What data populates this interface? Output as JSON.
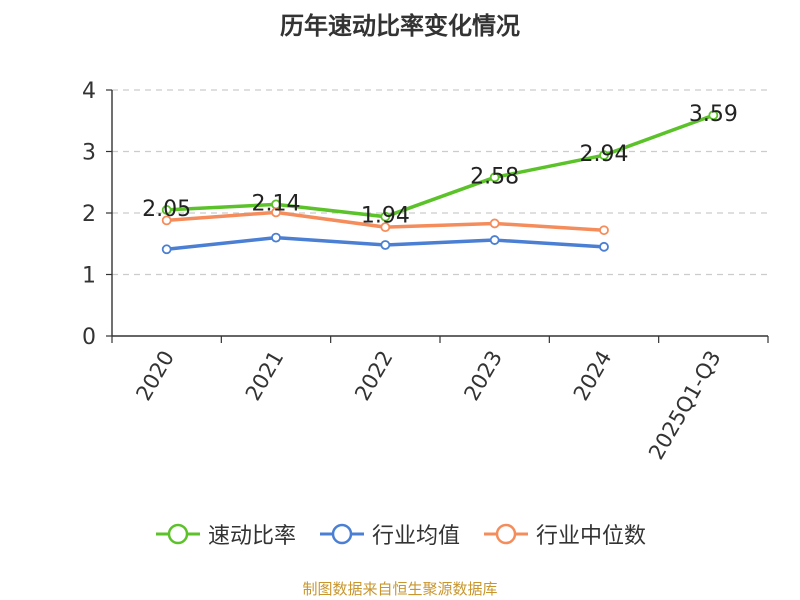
{
  "chart_data": {
    "type": "line",
    "title": "历年速动比率变化情况",
    "categories": [
      "2020",
      "2021",
      "2022",
      "2023",
      "2024",
      "2025Q1-Q3"
    ],
    "ylim": [
      0,
      4
    ],
    "yticks": [
      0,
      1,
      2,
      3,
      4
    ],
    "grid": true,
    "legend_position": "bottom",
    "series": [
      {
        "name": "速动比率",
        "color": "#5cc22a",
        "values": [
          2.05,
          2.14,
          1.94,
          2.58,
          2.94,
          3.59
        ],
        "labels": [
          "2.05",
          "2.14",
          "1.94",
          "2.58",
          "2.94",
          "3.59"
        ],
        "show_labels": true
      },
      {
        "name": "行业均值",
        "color": "#4a7fd4",
        "values": [
          1.41,
          1.6,
          1.48,
          1.56,
          1.45,
          null
        ],
        "show_labels": false
      },
      {
        "name": "行业中位数",
        "color": "#f48d5b",
        "values": [
          1.88,
          2.01,
          1.77,
          1.83,
          1.72,
          null
        ],
        "show_labels": false
      }
    ]
  },
  "source_note": "制图数据来自恒生聚源数据库"
}
